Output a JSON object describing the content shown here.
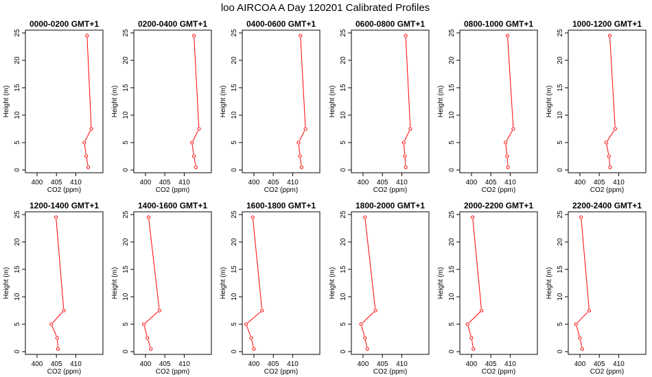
{
  "title": "loo AIRCOA A  Day 120201  Calibrated Profiles",
  "chart_data": {
    "type": "line",
    "xlabel": "CO2 (ppm)",
    "ylabel": "Height (m)",
    "xlim": [
      397,
      417
    ],
    "ylim": [
      -0.5,
      25.5
    ],
    "xticks": [
      "400",
      "405",
      "410"
    ],
    "yticks": [
      "0",
      "5",
      "10",
      "15",
      "20",
      "25"
    ],
    "series_color": "#ff0000",
    "heights": [
      0.5,
      2.5,
      5,
      7.5,
      24.5
    ],
    "panels": [
      {
        "title": "0000-0200 GMT+1",
        "x": [
          413.2,
          412.7,
          412.2,
          414.0,
          412.9
        ]
      },
      {
        "title": "0200-0400 GMT+1",
        "x": [
          413.0,
          412.5,
          412.0,
          413.8,
          412.5
        ]
      },
      {
        "title": "0400-0600 GMT+1",
        "x": [
          412.3,
          411.9,
          411.5,
          413.3,
          412.0
        ]
      },
      {
        "title": "0600-0800 GMT+1",
        "x": [
          411.0,
          410.8,
          410.5,
          412.2,
          411.0
        ]
      },
      {
        "title": "0800-1000 GMT+1",
        "x": [
          409.4,
          409.2,
          408.8,
          410.8,
          409.3
        ]
      },
      {
        "title": "1000-1200 GMT+1",
        "x": [
          407.8,
          407.5,
          406.8,
          409.1,
          407.7
        ]
      },
      {
        "title": "1200-1400 GMT+1",
        "x": [
          405.4,
          405.2,
          403.7,
          406.9,
          404.9
        ]
      },
      {
        "title": "1400-1600 GMT+1",
        "x": [
          401.4,
          400.5,
          399.6,
          403.6,
          400.8
        ]
      },
      {
        "title": "1600-1800 GMT+1",
        "x": [
          400.0,
          399.3,
          398.0,
          402.1,
          399.7
        ]
      },
      {
        "title": "1800-2000 GMT+1",
        "x": [
          401.1,
          400.5,
          399.5,
          403.2,
          400.5
        ]
      },
      {
        "title": "2000-2200 GMT+1",
        "x": [
          400.5,
          400.0,
          399.0,
          402.6,
          400.3
        ]
      },
      {
        "title": "2200-2400 GMT+1",
        "x": [
          400.6,
          400.0,
          399.0,
          402.4,
          400.3
        ]
      }
    ]
  }
}
